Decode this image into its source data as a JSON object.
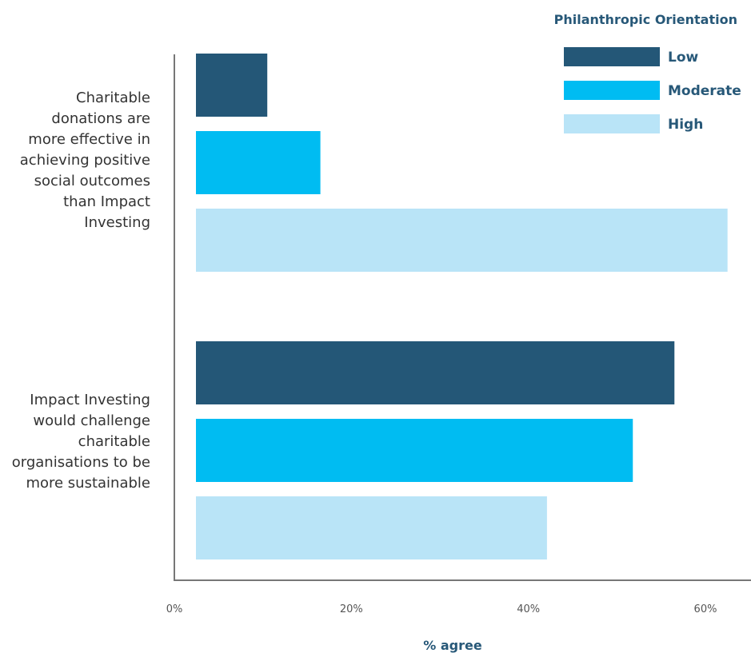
{
  "chart_data": {
    "type": "bar",
    "orientation": "horizontal",
    "categories": [
      "Charitable donations are more effective in achieving positive social outcomes than Impact Investing",
      "Impact Investing would challenge charitable organisations to be more sustainable"
    ],
    "category_lines": [
      [
        "Charitable",
        "donations are",
        "more effective in",
        "achieving positive",
        "social outcomes",
        "than Impact",
        "Investing"
      ],
      [
        "Impact Investing",
        "would challenge",
        "charitable",
        "organisations to be",
        "more sustainable"
      ]
    ],
    "series": [
      {
        "name": "Low",
        "color": "#245777",
        "values": [
          10.5,
          56.5
        ]
      },
      {
        "name": "Moderate",
        "color": "#00bcf2",
        "values": [
          16.5,
          51.8
        ]
      },
      {
        "name": "High",
        "color": "#b9e4f7",
        "values": [
          62.5,
          42.1
        ]
      }
    ],
    "legend_title": "Philanthropic Orientation",
    "legend_position": "top-right",
    "xlabel": "% agree",
    "xlim": [
      0,
      60
    ],
    "xticks": [
      0,
      20,
      40,
      60
    ],
    "xtick_labels": [
      "0%",
      "20%",
      "40%",
      "60%"
    ],
    "grid": false
  }
}
